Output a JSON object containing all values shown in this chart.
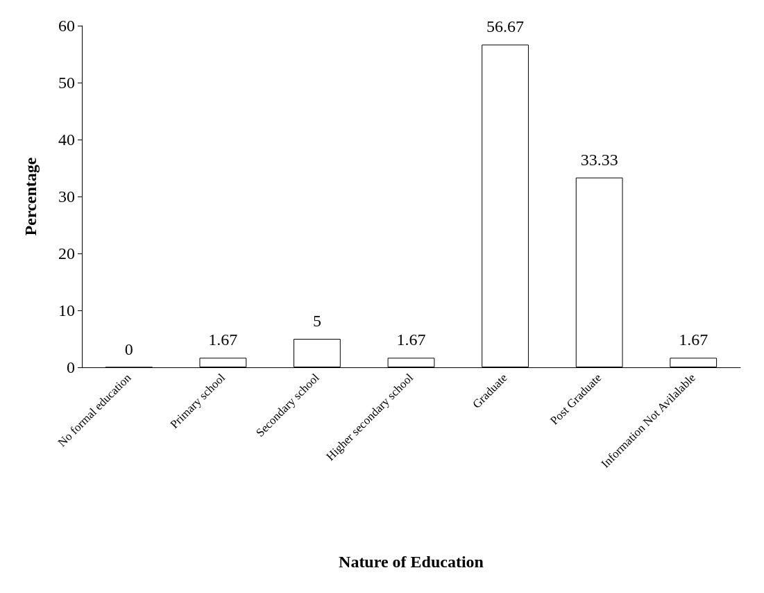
{
  "chart_data": {
    "type": "bar",
    "xlabel": "Nature of Education",
    "ylabel": "Percentage",
    "categories": [
      "No formal education",
      "Primary school",
      "Secondary school",
      "Higher secondary school",
      "Graduate",
      "Post Graduate",
      "Information Not Avilalable"
    ],
    "values": [
      0,
      1.67,
      5,
      1.67,
      56.67,
      33.33,
      1.67
    ],
    "color": "#ffffff",
    "ylim": [
      0,
      60
    ],
    "yticks": [
      0,
      10,
      20,
      30,
      40,
      50,
      60
    ],
    "data_labels": true,
    "grid": false
  }
}
